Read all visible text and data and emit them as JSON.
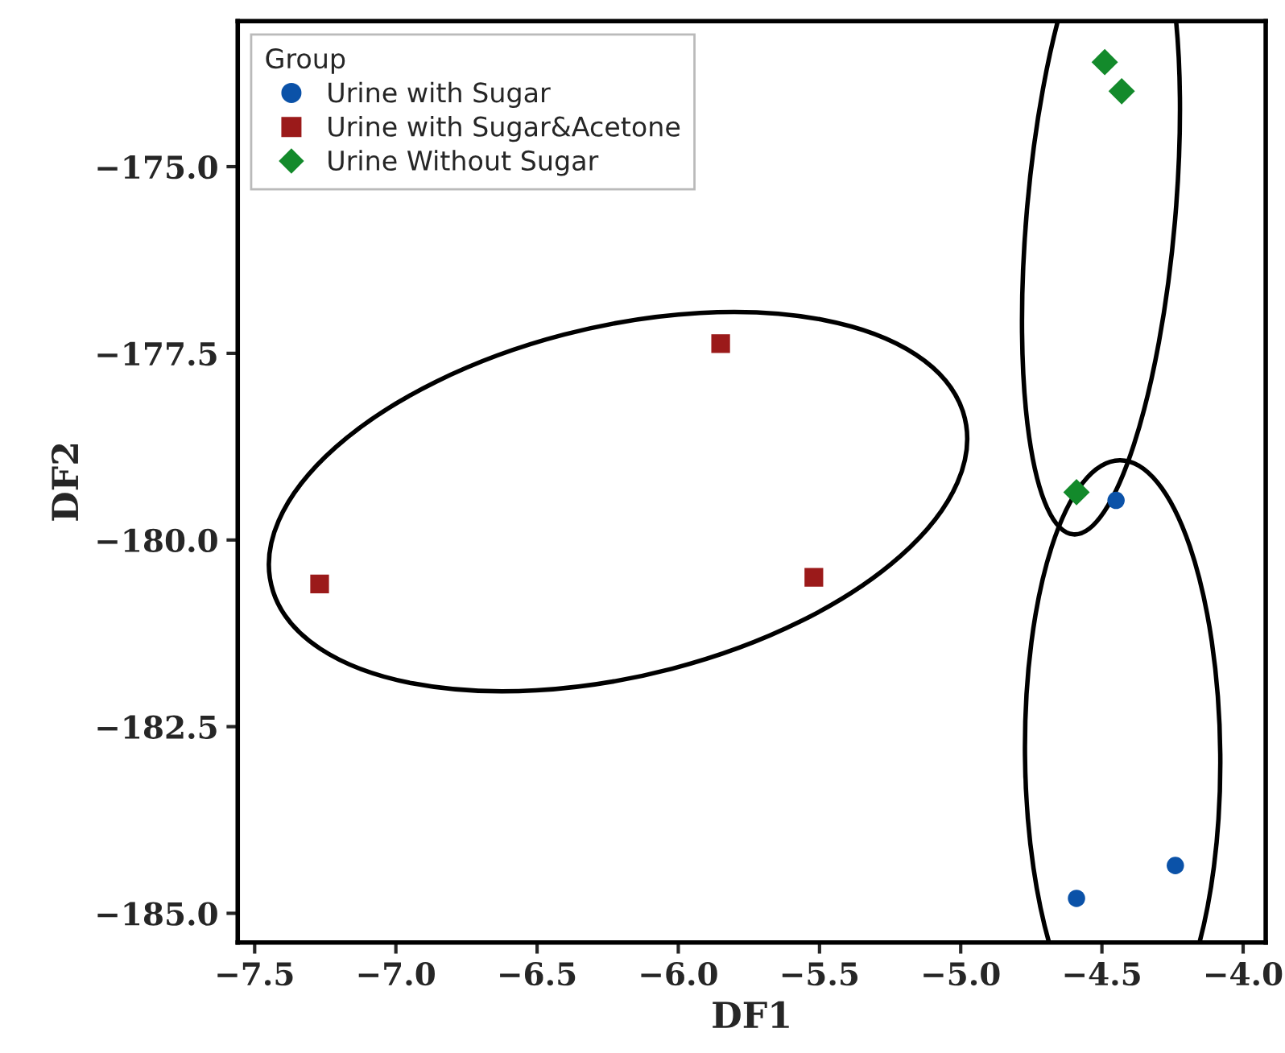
{
  "chart_data": {
    "type": "scatter",
    "xlabel": "DF1",
    "ylabel": "DF2",
    "legend_title": "Group",
    "legend": "top left",
    "grid": false,
    "xlim": [
      -7.56,
      -3.92
    ],
    "xticks": [
      {
        "value": -7.5,
        "label": "−7.5"
      },
      {
        "value": -7.0,
        "label": "−7.0"
      },
      {
        "value": -6.5,
        "label": "−6.5"
      },
      {
        "value": -6.0,
        "label": "−6.0"
      },
      {
        "value": -5.5,
        "label": "−5.5"
      },
      {
        "value": -5.0,
        "label": "−5.0"
      },
      {
        "value": -4.5,
        "label": "−4.5"
      },
      {
        "value": -4.0,
        "label": "−4.0"
      }
    ],
    "ylim": [
      -185.39,
      -173.05
    ],
    "yticks": [
      {
        "value": -185.0,
        "label": "−185.0"
      },
      {
        "value": -182.5,
        "label": "−182.5"
      },
      {
        "value": -180.0,
        "label": "−180.0"
      },
      {
        "value": -177.5,
        "label": "−177.5"
      },
      {
        "value": -175.0,
        "label": "−175.0"
      }
    ],
    "series": [
      {
        "name": "Urine with Sugar",
        "color": "#0b52a8",
        "marker": "circle",
        "x": [
          -4.45,
          -4.24,
          -4.59
        ],
        "values": [
          -179.47,
          -184.36,
          -184.8
        ]
      },
      {
        "name": "Urine with Sugar&Acetone",
        "color": "#9b1a1a",
        "marker": "square",
        "x": [
          -7.27,
          -5.85,
          -5.52
        ],
        "values": [
          -180.59,
          -177.37,
          -180.5
        ]
      },
      {
        "name": "Urine Without Sugar",
        "color": "#138a2b",
        "marker": "diamond",
        "x": [
          -4.49,
          -4.43,
          -4.59
        ],
        "values": [
          -173.6,
          -173.99,
          -179.36
        ]
      }
    ]
  }
}
